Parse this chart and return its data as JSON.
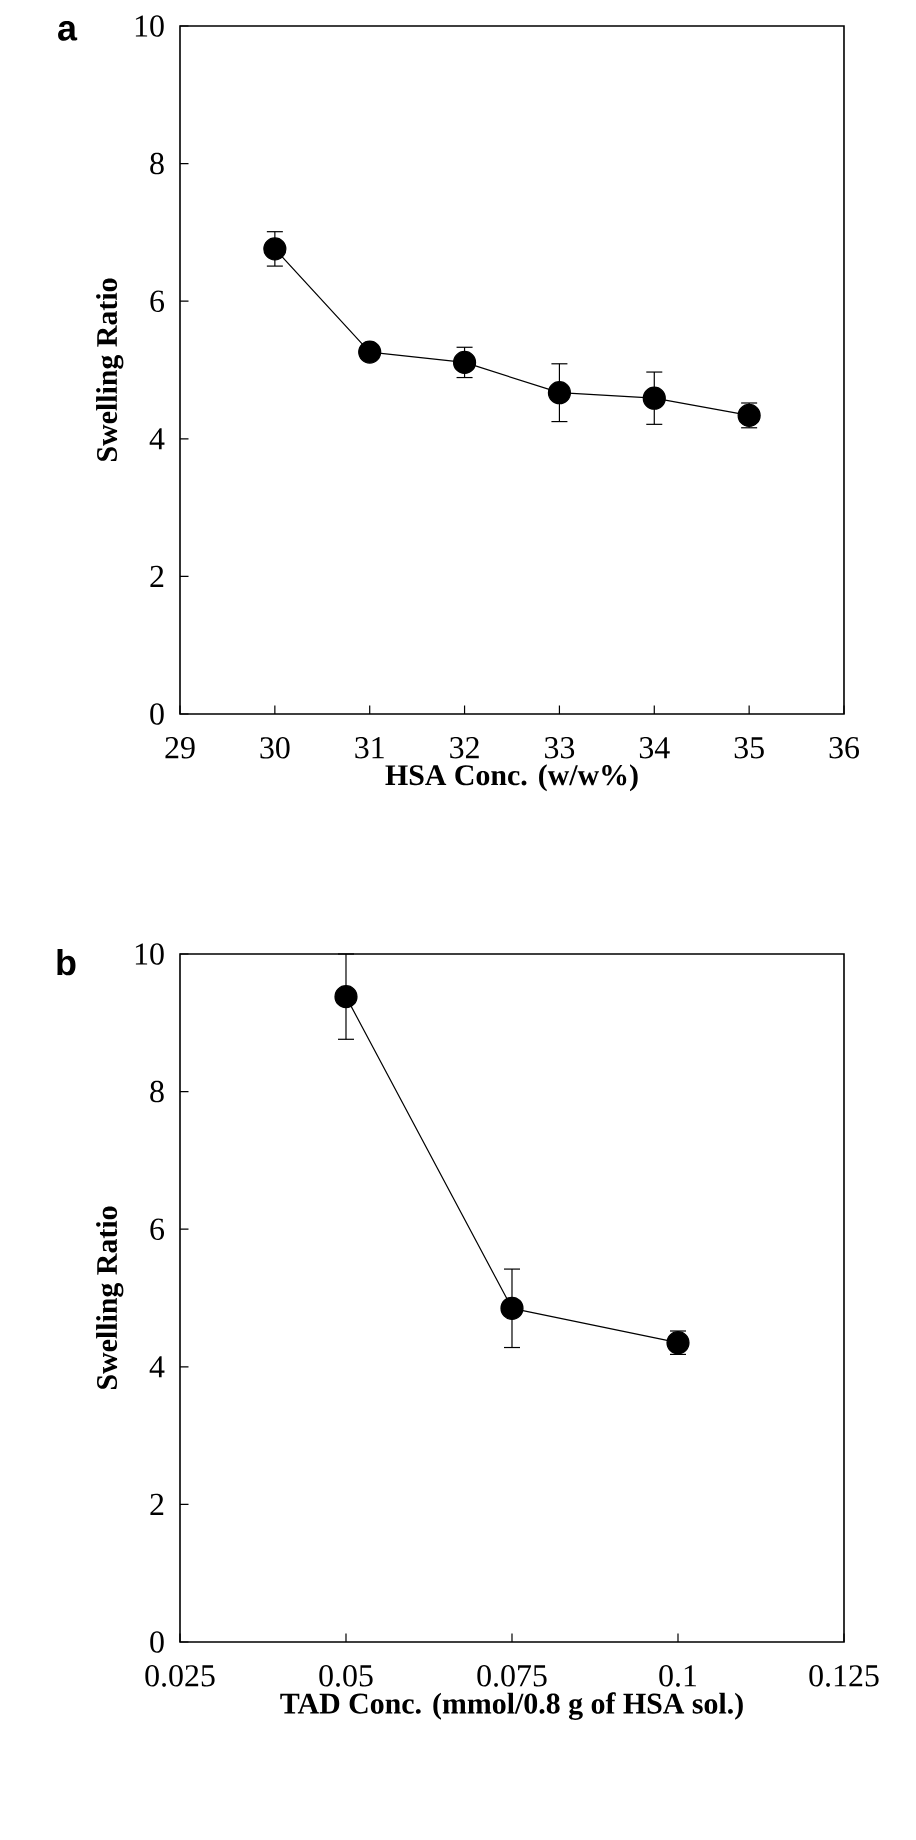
{
  "chart_data": [
    {
      "type": "line",
      "title": "a",
      "xlabel": "HSA Conc. (w/w%)",
      "ylabel": "Swelling Ratio",
      "xlim": [
        29,
        36
      ],
      "xticks": [
        29,
        30,
        31,
        32,
        33,
        34,
        35,
        36
      ],
      "ylim": [
        0,
        10
      ],
      "yticks": [
        0,
        2,
        4,
        6,
        8,
        10
      ],
      "marker": "circle",
      "line_style": "solid",
      "series": [
        {
          "color": "#000000",
          "x": [
            30,
            31,
            32,
            33,
            34,
            35
          ],
          "values": [
            6.76,
            5.26,
            5.11,
            4.67,
            4.59,
            4.34
          ],
          "errors": [
            0.25,
            null,
            0.22,
            0.42,
            0.38,
            0.18
          ]
        }
      ]
    },
    {
      "type": "line",
      "title": "b",
      "xlabel": "TAD Conc. (mmol/0.8 g of HSA sol.)",
      "ylabel": "Swelling Ratio",
      "xlim": [
        0.025,
        0.125
      ],
      "xticks": [
        0.025,
        0.05,
        0.075,
        0.1,
        0.125
      ],
      "ylim": [
        0,
        10
      ],
      "yticks": [
        0,
        2,
        4,
        6,
        8,
        10
      ],
      "marker": "circle",
      "line_style": "solid",
      "series": [
        {
          "color": "#000000",
          "x": [
            0.05,
            0.075,
            0.1
          ],
          "values": [
            9.38,
            4.85,
            4.35
          ],
          "errors": [
            0.62,
            0.57,
            0.17
          ]
        }
      ]
    }
  ]
}
